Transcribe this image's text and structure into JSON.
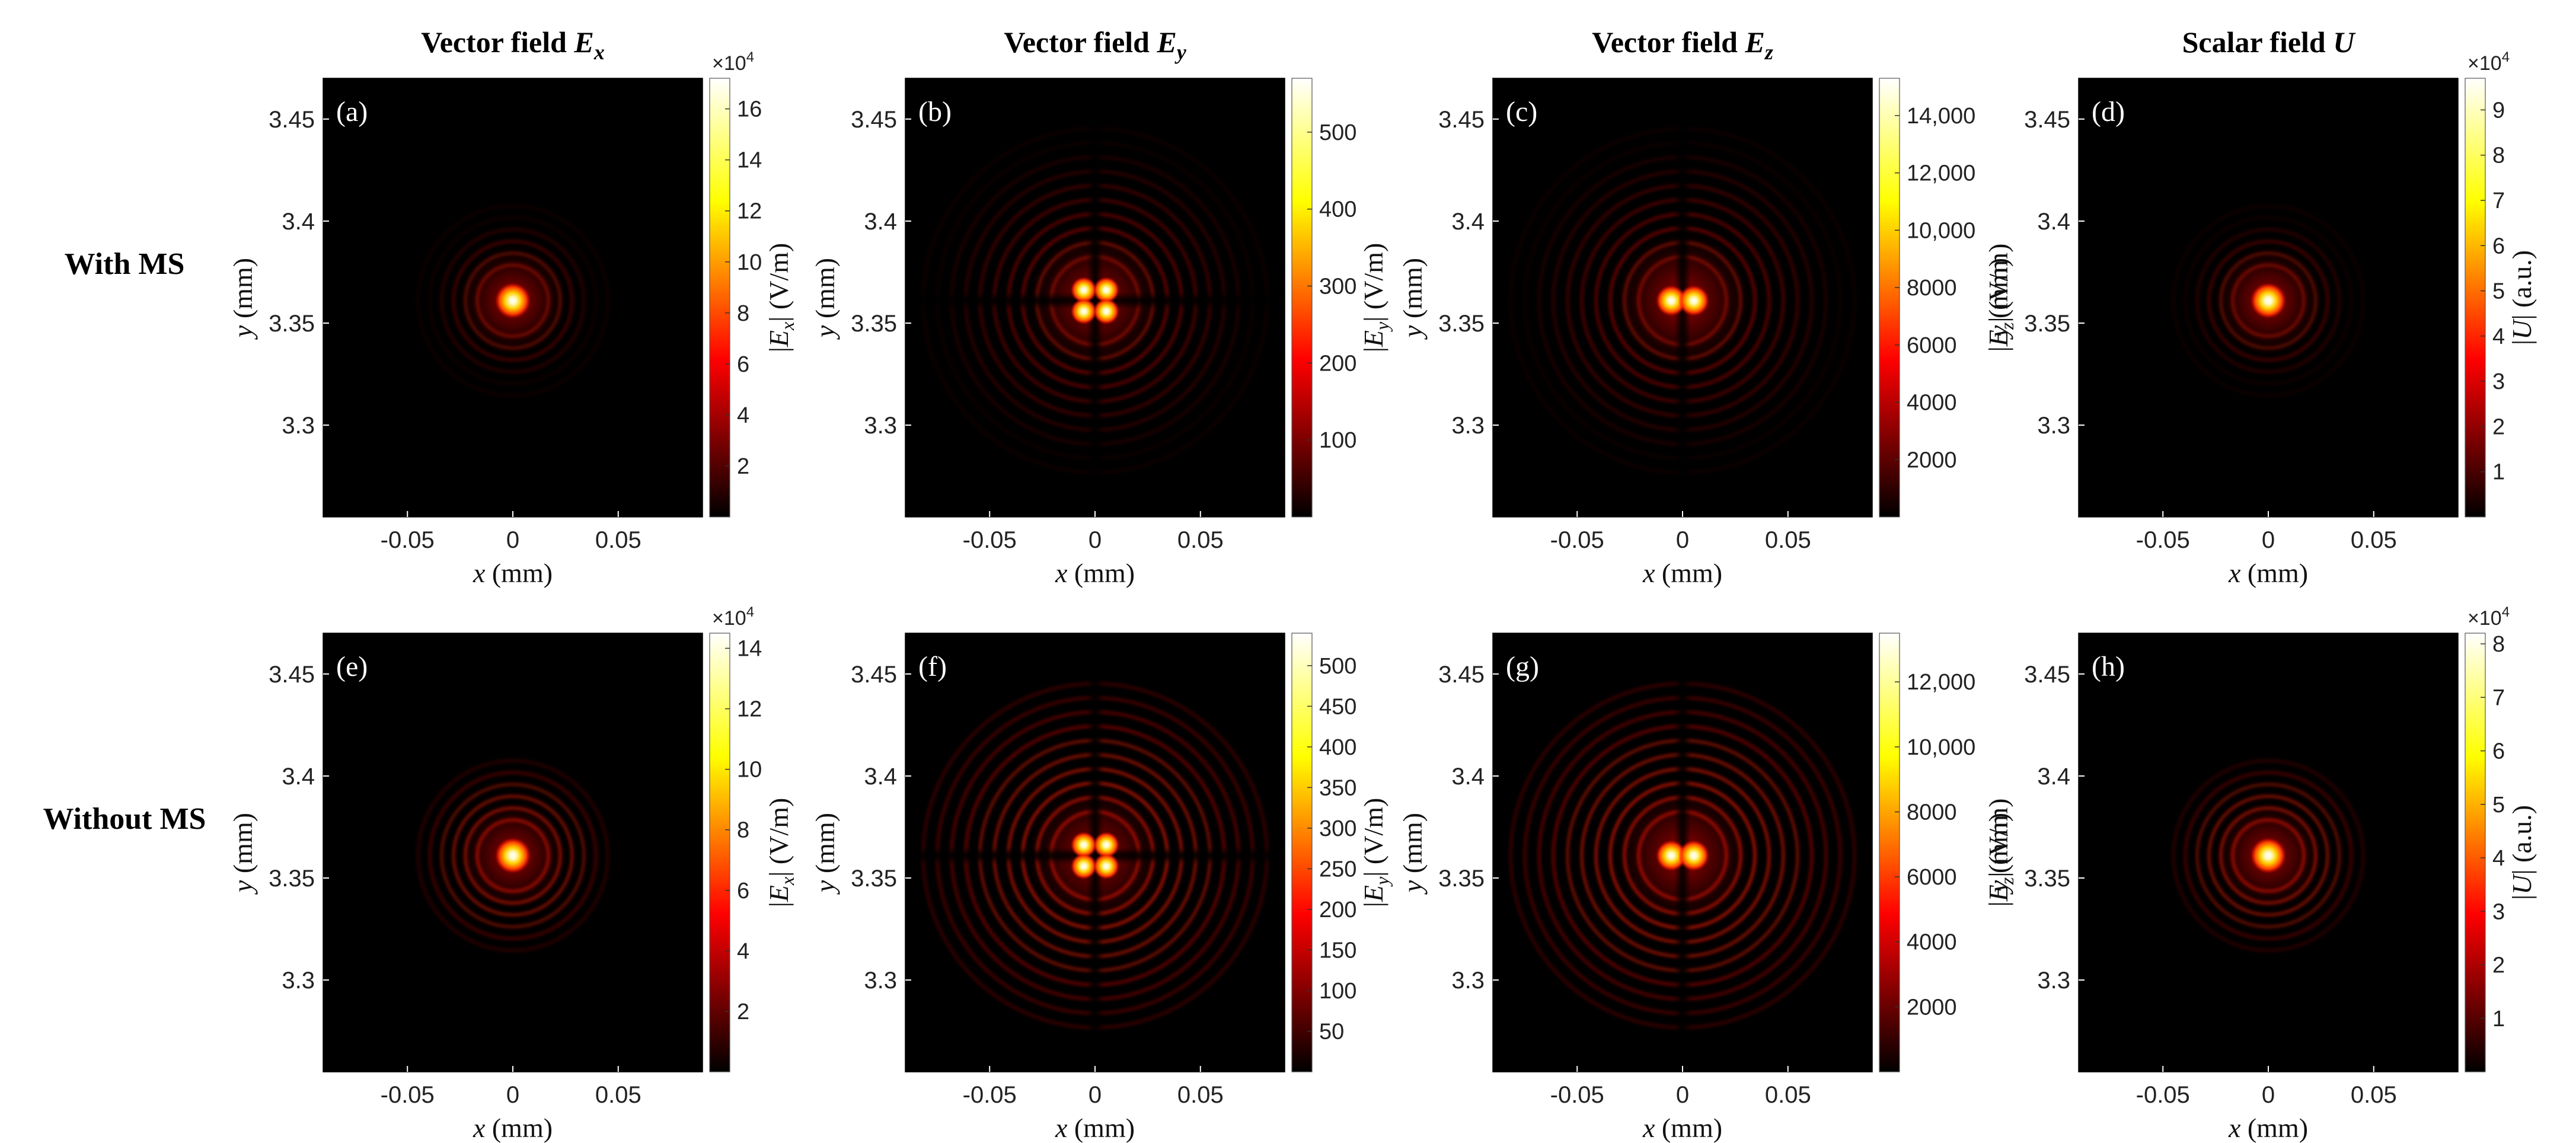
{
  "column_titles": [
    {
      "prefix": "Vector field ",
      "symbol": "E",
      "sub": "x"
    },
    {
      "prefix": "Vector field ",
      "symbol": "E",
      "sub": "y"
    },
    {
      "prefix": "Vector field ",
      "symbol": "E",
      "sub": "z"
    },
    {
      "prefix": "Scalar field ",
      "symbol": "U",
      "sub": ""
    }
  ],
  "row_titles": [
    "With MS",
    "Without MS"
  ],
  "x_axis": {
    "label": "x (mm)",
    "var": "x",
    "unit": " (mm)",
    "ticks": [
      "-0.05",
      "0",
      "0.05"
    ],
    "tick_values": [
      -0.05,
      0,
      0.05
    ],
    "range": [
      -0.09,
      0.09
    ]
  },
  "y_axis": {
    "label": "y (mm)",
    "var": "y",
    "unit": " (mm)",
    "ticks": [
      "3.45",
      "3.4",
      "3.35",
      "3.3"
    ],
    "tick_values": [
      3.45,
      3.4,
      3.35,
      3.3
    ],
    "range": [
      3.255,
      3.47
    ]
  },
  "chart_data": [
    {
      "type": "heatmap",
      "panel": "(a)",
      "row": "With MS",
      "column": "Vector field Ex",
      "pattern": "ring",
      "center": [
        0,
        3.361
      ],
      "colorbar": {
        "label": "|Ex| (V/m)",
        "sym": "E",
        "sub": "x",
        "unit": "(V/m)",
        "multiplier": "×10",
        "multiplier_exp": "4",
        "ticks": [
          "2",
          "4",
          "6",
          "8",
          "10",
          "12",
          "14",
          "16"
        ],
        "tick_values": [
          2,
          4,
          6,
          8,
          10,
          12,
          14,
          16
        ],
        "range": [
          0,
          17.2
        ]
      }
    },
    {
      "type": "heatmap",
      "panel": "(b)",
      "row": "With MS",
      "column": "Vector field Ey",
      "pattern": "quad",
      "center": [
        0,
        3.361
      ],
      "colorbar": {
        "label": "|Ey| (V/m)",
        "sym": "E",
        "sub": "y",
        "unit": "(V/m)",
        "multiplier": "",
        "multiplier_exp": "",
        "ticks": [
          "100",
          "200",
          "300",
          "400",
          "500"
        ],
        "tick_values": [
          100,
          200,
          300,
          400,
          500
        ],
        "range": [
          0,
          570
        ]
      }
    },
    {
      "type": "heatmap",
      "panel": "(c)",
      "row": "With MS",
      "column": "Vector field Ez",
      "pattern": "dual",
      "center": [
        0,
        3.361
      ],
      "colorbar": {
        "label": "|Ez| (V/m)",
        "sym": "E",
        "sub": "z",
        "unit": "(V/m)",
        "multiplier": "",
        "multiplier_exp": "",
        "ticks": [
          "2000",
          "4000",
          "6000",
          "8000",
          "10,000",
          "12,000",
          "14,000"
        ],
        "tick_values": [
          2000,
          4000,
          6000,
          8000,
          10000,
          12000,
          14000
        ],
        "range": [
          0,
          15300
        ]
      }
    },
    {
      "type": "heatmap",
      "panel": "(d)",
      "row": "With MS",
      "column": "Scalar field U",
      "pattern": "ring",
      "center": [
        0,
        3.361
      ],
      "colorbar": {
        "label": "|U| (a.u.)",
        "sym": "U",
        "sub": "",
        "unit": "(a.u.)",
        "multiplier": "×10",
        "multiplier_exp": "4",
        "ticks": [
          "1",
          "2",
          "3",
          "4",
          "5",
          "6",
          "7",
          "8",
          "9"
        ],
        "tick_values": [
          1,
          2,
          3,
          4,
          5,
          6,
          7,
          8,
          9
        ],
        "range": [
          0,
          9.7
        ]
      }
    },
    {
      "type": "heatmap",
      "panel": "(e)",
      "row": "Without MS",
      "column": "Vector field Ex",
      "pattern": "ring",
      "center": [
        0,
        3.361
      ],
      "colorbar": {
        "label": "|Ex| (V/m)",
        "sym": "E",
        "sub": "x",
        "unit": "(V/m)",
        "multiplier": "×10",
        "multiplier_exp": "4",
        "ticks": [
          "2",
          "4",
          "6",
          "8",
          "10",
          "12",
          "14"
        ],
        "tick_values": [
          2,
          4,
          6,
          8,
          10,
          12,
          14
        ],
        "range": [
          0,
          14.5
        ]
      }
    },
    {
      "type": "heatmap",
      "panel": "(f)",
      "row": "Without MS",
      "column": "Vector field Ey",
      "pattern": "quad",
      "center": [
        0,
        3.361
      ],
      "colorbar": {
        "label": "|Ey| (V/m)",
        "sym": "E",
        "sub": "y",
        "unit": "(V/m)",
        "multiplier": "",
        "multiplier_exp": "",
        "ticks": [
          "50",
          "100",
          "150",
          "200",
          "250",
          "300",
          "350",
          "400",
          "450",
          "500"
        ],
        "tick_values": [
          50,
          100,
          150,
          200,
          250,
          300,
          350,
          400,
          450,
          500
        ],
        "range": [
          0,
          540
        ]
      }
    },
    {
      "type": "heatmap",
      "panel": "(g)",
      "row": "Without MS",
      "column": "Vector field Ez",
      "pattern": "dual",
      "center": [
        0,
        3.361
      ],
      "colorbar": {
        "label": "|Ez| (V/m)",
        "sym": "E",
        "sub": "z",
        "unit": "(V/m)",
        "multiplier": "",
        "multiplier_exp": "",
        "ticks": [
          "2000",
          "4000",
          "6000",
          "8000",
          "10,000",
          "12,000"
        ],
        "tick_values": [
          2000,
          4000,
          6000,
          8000,
          10000,
          12000
        ],
        "range": [
          0,
          13500
        ]
      }
    },
    {
      "type": "heatmap",
      "panel": "(h)",
      "row": "Without MS",
      "column": "Scalar field U",
      "pattern": "ring",
      "center": [
        0,
        3.361
      ],
      "colorbar": {
        "label": "|U| (a.u.)",
        "sym": "U",
        "sub": "",
        "unit": "(a.u.)",
        "multiplier": "×10",
        "multiplier_exp": "4",
        "ticks": [
          "1",
          "2",
          "3",
          "4",
          "5",
          "6",
          "7",
          "8"
        ],
        "tick_values": [
          1,
          2,
          3,
          4,
          5,
          6,
          7,
          8
        ],
        "range": [
          0,
          8.2
        ]
      }
    }
  ]
}
